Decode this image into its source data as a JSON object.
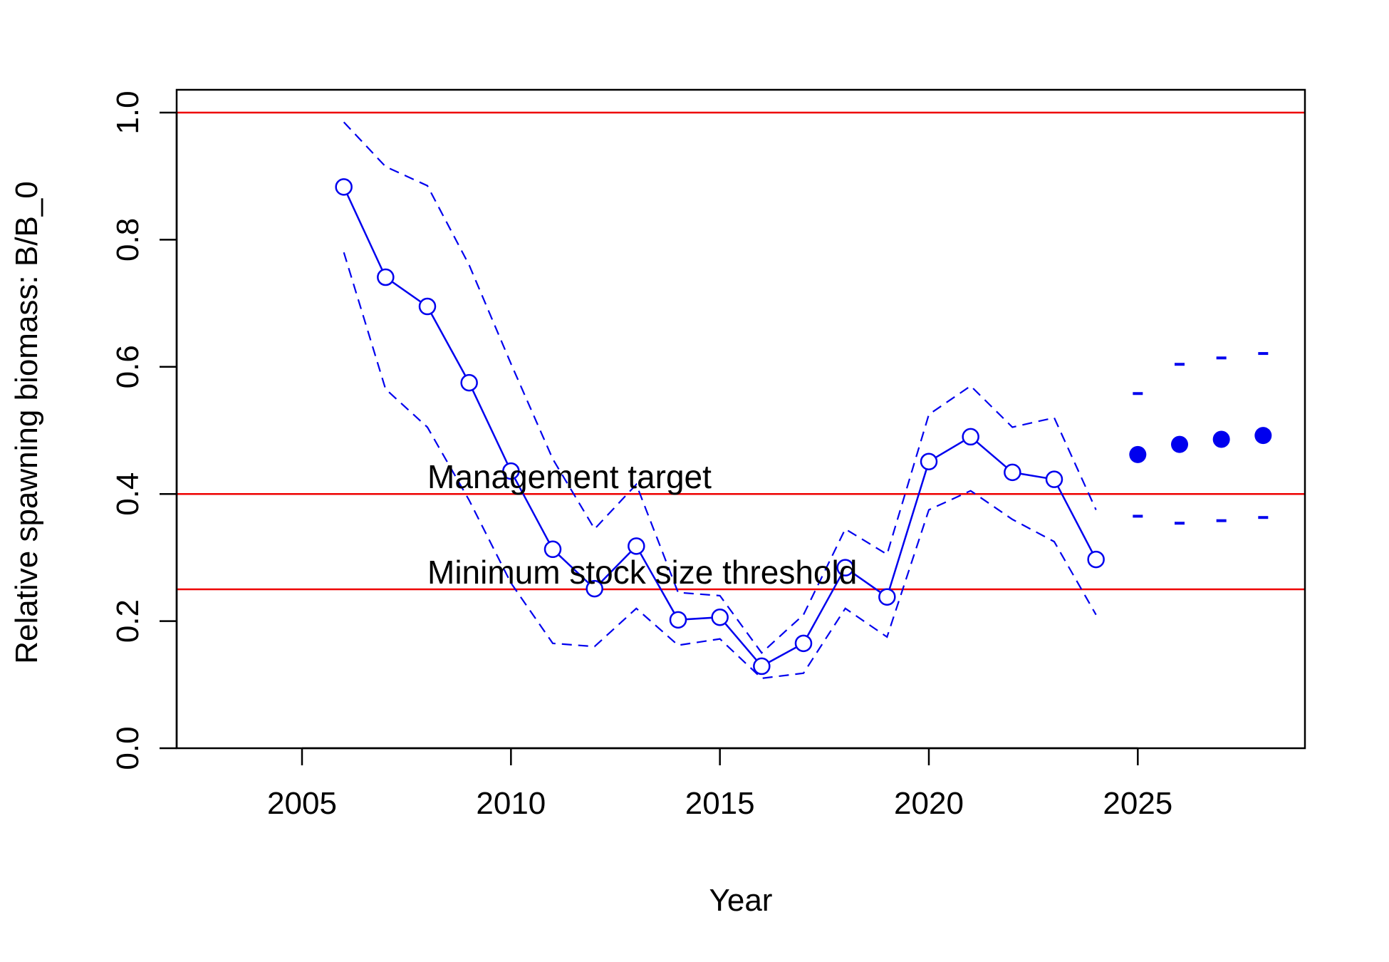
{
  "chart_data": {
    "type": "line",
    "title": "",
    "xlabel": "Year",
    "ylabel": "Relative spawning biomass: B/B_0",
    "xlim": [
      2002,
      2029
    ],
    "ylim": [
      0.0,
      1.04
    ],
    "grid": false,
    "x_ticks": [
      "2005",
      "2010",
      "2015",
      "2020",
      "2025"
    ],
    "y_ticks": [
      "0.0",
      "0.2",
      "0.4",
      "0.6",
      "0.8",
      "1.0"
    ],
    "colors": {
      "series": "#0000ee",
      "reference": "#ee0000",
      "axis": "#000000"
    },
    "estimate": {
      "x": [
        2006,
        2007,
        2008,
        2009,
        2010,
        2011,
        2012,
        2013,
        2014,
        2015,
        2016,
        2017,
        2018,
        2019,
        2020,
        2021,
        2022,
        2023,
        2024
      ],
      "values": [
        0.883,
        0.741,
        0.695,
        0.575,
        0.436,
        0.313,
        0.251,
        0.318,
        0.202,
        0.206,
        0.129,
        0.165,
        0.284,
        0.238,
        0.451,
        0.49,
        0.434,
        0.423,
        0.297
      ],
      "upper": [
        0.985,
        0.915,
        0.885,
        0.76,
        0.605,
        0.455,
        0.345,
        0.415,
        0.245,
        0.24,
        0.15,
        0.21,
        0.345,
        0.305,
        0.525,
        0.57,
        0.505,
        0.52,
        0.375
      ],
      "lower": [
        0.78,
        0.565,
        0.505,
        0.39,
        0.26,
        0.165,
        0.16,
        0.22,
        0.162,
        0.172,
        0.11,
        0.118,
        0.22,
        0.175,
        0.375,
        0.405,
        0.36,
        0.325,
        0.21
      ]
    },
    "projection": {
      "x": [
        2025,
        2026,
        2027,
        2028
      ],
      "values": [
        0.462,
        0.478,
        0.486,
        0.492
      ],
      "upper": [
        0.558,
        0.604,
        0.614,
        0.621
      ],
      "lower": [
        0.365,
        0.354,
        0.358,
        0.363
      ]
    },
    "reference_lines": [
      {
        "y": 1.0,
        "label": ""
      },
      {
        "y": 0.4,
        "label": "Management target"
      },
      {
        "y": 0.25,
        "label": "Minimum stock size threshold"
      }
    ],
    "annotation_x": 2008
  }
}
